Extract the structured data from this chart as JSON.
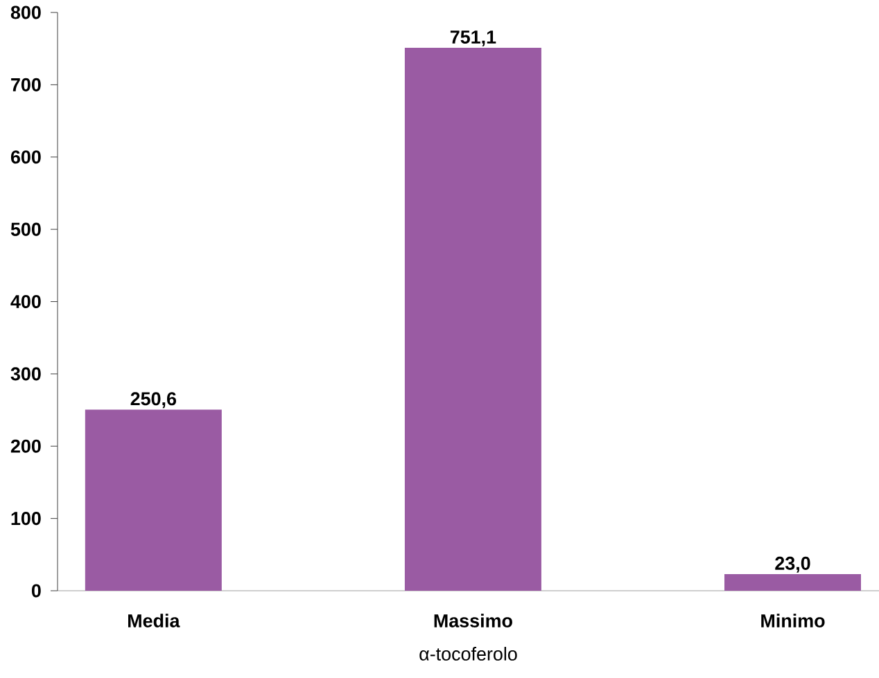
{
  "chart_data": {
    "type": "bar",
    "xlabel": "α-tocoferolo",
    "categories": [
      "Media",
      "Massimo",
      "Minimo"
    ],
    "values": [
      250.6,
      751.1,
      23.0
    ],
    "value_labels": [
      "250,6",
      "751,1",
      "23,0"
    ],
    "color": "#9a5ba3",
    "ylim": [
      0,
      800
    ],
    "yticks": [
      0,
      100,
      200,
      300,
      400,
      500,
      600,
      700,
      800
    ],
    "grid": false
  }
}
